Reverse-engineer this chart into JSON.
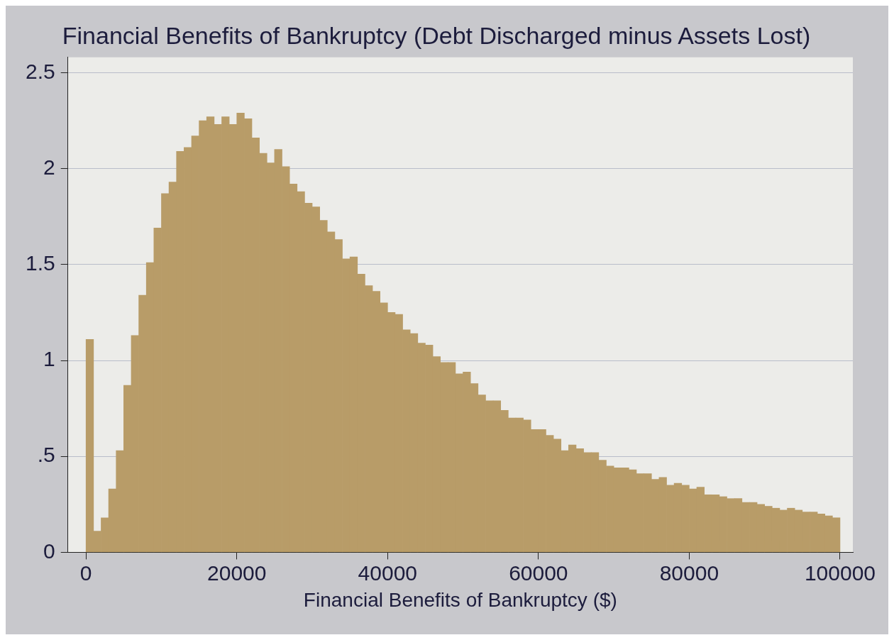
{
  "chart_data": {
    "type": "histogram",
    "title": "Financial Benefits of Bankruptcy (Debt Discharged minus Assets Lost)",
    "xlabel": "Financial Benefits of Bankruptcy ($)",
    "bins": [
      0,
      1000,
      2000,
      3000,
      4000,
      5000,
      6000,
      7000,
      8000,
      9000,
      10000,
      11000,
      12000,
      13000,
      14000,
      15000,
      16000,
      17000,
      18000,
      19000,
      20000,
      21000,
      22000,
      23000,
      24000,
      25000,
      26000,
      27000,
      28000,
      29000,
      30000,
      31000,
      32000,
      33000,
      34000,
      35000,
      36000,
      37000,
      38000,
      39000,
      40000,
      41000,
      42000,
      43000,
      44000,
      45000,
      46000,
      47000,
      48000,
      49000,
      50000,
      51000,
      52000,
      53000,
      54000,
      55000,
      56000,
      57000,
      58000,
      59000,
      60000,
      61000,
      62000,
      63000,
      64000,
      65000,
      66000,
      67000,
      68000,
      69000,
      70000,
      71000,
      72000,
      73000,
      74000,
      75000,
      76000,
      77000,
      78000,
      79000,
      80000,
      81000,
      82000,
      83000,
      84000,
      85000,
      86000,
      87000,
      88000,
      89000,
      90000,
      91000,
      92000,
      93000,
      94000,
      95000,
      96000,
      97000,
      98000,
      99000,
      100000
    ],
    "values": [
      1.11,
      0.11,
      0.18,
      0.33,
      0.53,
      0.87,
      1.13,
      1.34,
      1.51,
      1.69,
      1.87,
      1.93,
      2.09,
      2.11,
      2.17,
      2.25,
      2.27,
      2.23,
      2.27,
      2.23,
      2.29,
      2.26,
      2.16,
      2.08,
      2.03,
      2.1,
      2.01,
      1.92,
      1.88,
      1.82,
      1.8,
      1.73,
      1.67,
      1.63,
      1.53,
      1.54,
      1.45,
      1.39,
      1.36,
      1.3,
      1.25,
      1.24,
      1.16,
      1.14,
      1.09,
      1.08,
      1.02,
      0.99,
      0.99,
      0.93,
      0.94,
      0.88,
      0.82,
      0.79,
      0.79,
      0.74,
      0.7,
      0.7,
      0.69,
      0.64,
      0.64,
      0.61,
      0.59,
      0.53,
      0.56,
      0.54,
      0.52,
      0.52,
      0.48,
      0.45,
      0.44,
      0.44,
      0.43,
      0.41,
      0.41,
      0.38,
      0.39,
      0.35,
      0.36,
      0.35,
      0.33,
      0.34,
      0.3,
      0.3,
      0.29,
      0.28,
      0.28,
      0.26,
      0.26,
      0.25,
      0.24,
      0.23,
      0.22,
      0.23,
      0.22,
      0.21,
      0.21,
      0.2,
      0.19,
      0.18
    ],
    "color": "#b89c68",
    "xlim": [
      -2400,
      101700
    ],
    "ylim": [
      0,
      2.58
    ],
    "xticks": [
      0,
      20000,
      40000,
      60000,
      80000,
      100000
    ],
    "yticks": [
      0,
      {
        "value": 0.5,
        "label": ".5"
      },
      1,
      1.5,
      2,
      2.5
    ],
    "grid": "y"
  }
}
